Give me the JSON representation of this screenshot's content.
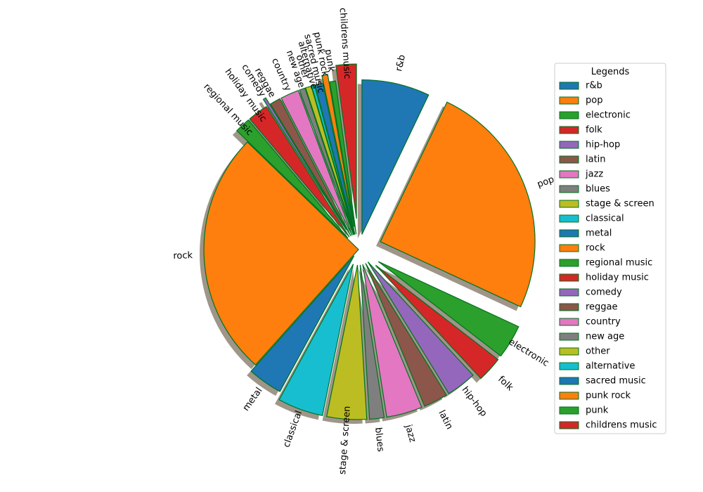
{
  "chart_data": {
    "type": "pie",
    "title": "",
    "legend_title": "Legends",
    "legend_position": "right",
    "start_angle_deg": 90,
    "direction": "clockwise",
    "shadow": true,
    "edge_color": "#00711f",
    "slices": [
      {
        "label": "r&b",
        "value": 7.0,
        "color": "#1f77b4",
        "explode": 0.1
      },
      {
        "label": "pop",
        "value": 24.5,
        "color": "#ff7f0e",
        "explode": 0.15
      },
      {
        "label": "electronic",
        "value": 3.5,
        "color": "#2ca02c",
        "explode": 0.15
      },
      {
        "label": "folk",
        "value": 2.6,
        "color": "#d62728",
        "explode": 0.15
      },
      {
        "label": "hip-hop",
        "value": 3.1,
        "color": "#9467bd",
        "explode": 0.1
      },
      {
        "label": "latin",
        "value": 2.5,
        "color": "#8c564b",
        "explode": 0.1
      },
      {
        "label": "jazz",
        "value": 3.7,
        "color": "#e377c2",
        "explode": 0.1
      },
      {
        "label": "blues",
        "value": 1.5,
        "color": "#7f7f7f",
        "explode": 0.1
      },
      {
        "label": "stage & screen",
        "value": 4.1,
        "color": "#bcbd22",
        "explode": 0.1
      },
      {
        "label": "classical",
        "value": 4.7,
        "color": "#17becf",
        "explode": 0.1
      },
      {
        "label": "metal",
        "value": 3.6,
        "color": "#1f77b4",
        "explode": 0.05
      },
      {
        "label": "rock",
        "value": 25.3,
        "color": "#ff7f0e",
        "explode": 0.0
      },
      {
        "label": "regional music",
        "value": 1.6,
        "color": "#2ca02c",
        "explode": 0.1
      },
      {
        "label": "holiday music",
        "value": 2.1,
        "color": "#d62728",
        "explode": 0.1
      },
      {
        "label": "comedy",
        "value": 0.3,
        "color": "#9467bd",
        "explode": 0.15
      },
      {
        "label": "reggae",
        "value": 1.1,
        "color": "#8c564b",
        "explode": 0.1
      },
      {
        "label": "country",
        "value": 1.9,
        "color": "#e377c2",
        "explode": 0.1
      },
      {
        "label": "new age",
        "value": 0.6,
        "color": "#7f7f7f",
        "explode": 0.1
      },
      {
        "label": "other",
        "value": 0.6,
        "color": "#bcbd22",
        "explode": 0.1
      },
      {
        "label": "alternative",
        "value": 0.3,
        "color": "#17becf",
        "explode": 0.1
      },
      {
        "label": "sacred music",
        "value": 0.8,
        "color": "#1f77b4",
        "explode": 0.1
      },
      {
        "label": "punk rock",
        "value": 0.6,
        "color": "#ff7f0e",
        "explode": 0.15
      },
      {
        "label": "punk",
        "value": 0.6,
        "color": "#2ca02c",
        "explode": 0.1
      },
      {
        "label": "childrens music",
        "value": 2.1,
        "color": "#d62728",
        "explode": 0.2
      }
    ]
  }
}
